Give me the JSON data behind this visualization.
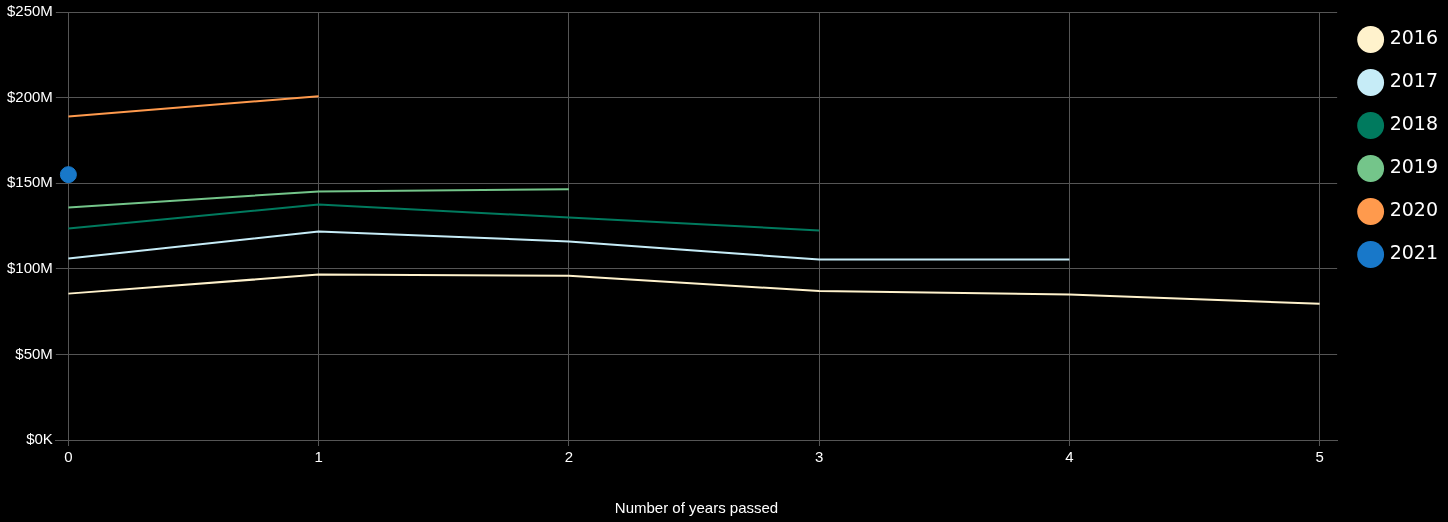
{
  "chart_data": {
    "type": "line",
    "xlabel": "Number of years passed",
    "x": [
      0,
      1,
      2,
      3,
      4,
      5
    ],
    "series": [
      {
        "name": "2016",
        "color": "#fff2cc",
        "values": [
          85.5,
          96.6,
          96,
          87,
          85,
          79.6
        ]
      },
      {
        "name": "2017",
        "color": "#c6ecf7",
        "x": [
          0,
          1,
          2,
          3,
          4
        ],
        "values": [
          106,
          121.8,
          116,
          105.4,
          105.4
        ]
      },
      {
        "name": "2018",
        "color": "#007a5e",
        "x": [
          0,
          1,
          2,
          3
        ],
        "values": [
          123.5,
          137.6,
          130,
          122.4
        ]
      },
      {
        "name": "2019",
        "color": "#74c58a",
        "x": [
          0,
          1,
          2
        ],
        "values": [
          135.8,
          145.2,
          146.4
        ]
      },
      {
        "name": "2020",
        "color": "#ff9a4d",
        "x": [
          0,
          1
        ],
        "values": [
          189,
          200.8
        ]
      },
      {
        "name": "2021",
        "color": "#1878c9",
        "type": "scatter",
        "marker": "circle",
        "x": [
          0
        ],
        "values": [
          155
        ]
      }
    ],
    "xlim": [
      -0.05,
      5.07
    ],
    "xticks": [
      0,
      1,
      2,
      3,
      4,
      5
    ],
    "ylim": [
      0,
      250
    ],
    "yticks": [
      {
        "value": 0,
        "label": "$0K"
      },
      {
        "value": 50,
        "label": "$50M"
      },
      {
        "value": 100,
        "label": "$100M"
      },
      {
        "value": 150,
        "label": "$150M"
      },
      {
        "value": 200,
        "label": "$200M"
      },
      {
        "value": 250,
        "label": "$250M"
      }
    ],
    "grid": true,
    "legend": "right",
    "line_style": "solid"
  }
}
